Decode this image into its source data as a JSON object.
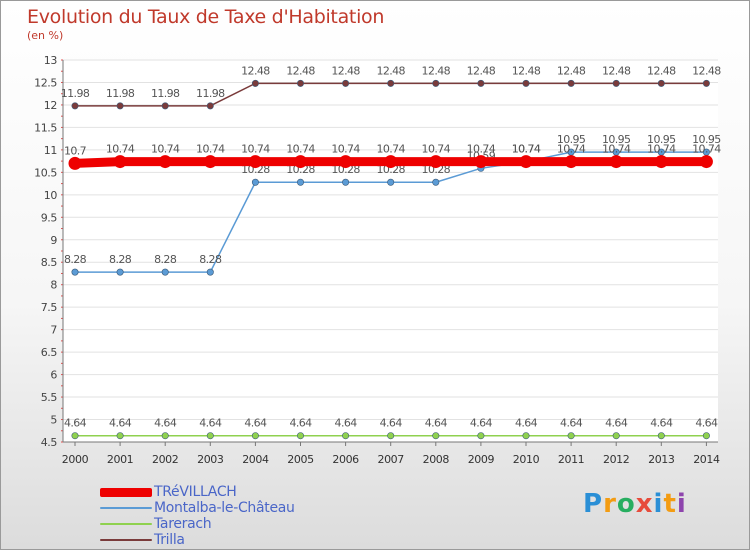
{
  "title": "Evolution du Taux de Taxe d'Habitation",
  "subtitle": "(en %)",
  "logo": [
    "P",
    "r",
    "o",
    "x",
    "i",
    "t",
    "i"
  ],
  "chart_data": {
    "type": "line",
    "title": "Evolution du Taux de Taxe d'Habitation",
    "ylabel": "(en %)",
    "ylim": [
      4.5,
      13
    ],
    "yticks": [
      "4.5",
      "5",
      "5.5",
      "6",
      "6.5",
      "7",
      "7.5",
      "8",
      "8.5",
      "9",
      "9.5",
      "10",
      "10.5",
      "11",
      "11.5",
      "12",
      "12.5",
      "13"
    ],
    "x": [
      "2000",
      "2001",
      "2002",
      "2003",
      "2004",
      "2005",
      "2006",
      "2007",
      "2008",
      "2009",
      "2010",
      "2011",
      "2012",
      "2013",
      "2014"
    ],
    "series": [
      {
        "name": "TRéVILLACH",
        "color": "#ee0000",
        "values": [
          10.7,
          10.74,
          10.74,
          10.74,
          10.74,
          10.74,
          10.74,
          10.74,
          10.74,
          10.74,
          10.74,
          10.74,
          10.74,
          10.74,
          10.74
        ],
        "labels": [
          "10.7",
          "10.74",
          "10.74",
          "10.74",
          "10.74",
          "10.74",
          "10.74",
          "10.74",
          "10.74",
          "10.74",
          "10.74",
          "10.74",
          "10.74",
          "10.74",
          "10.74"
        ]
      },
      {
        "name": "Montalba-le-Château",
        "color": "#5b9bd5",
        "values": [
          8.28,
          8.28,
          8.28,
          8.28,
          10.28,
          10.28,
          10.28,
          10.28,
          10.28,
          10.59,
          10.74,
          10.95,
          10.95,
          10.95,
          10.95
        ],
        "labels": [
          "8.28",
          "8.28",
          "8.28",
          "8.28",
          "10.28",
          "10.28",
          "10.28",
          "10.28",
          "10.28",
          "10.59",
          "10.74",
          "10.95",
          "10.95",
          "10.95",
          "10.95"
        ]
      },
      {
        "name": "Tarerach",
        "color": "#8fd14f",
        "values": [
          4.64,
          4.64,
          4.64,
          4.64,
          4.64,
          4.64,
          4.64,
          4.64,
          4.64,
          4.64,
          4.64,
          4.64,
          4.64,
          4.64,
          4.64
        ],
        "labels": [
          "4.64",
          "4.64",
          "4.64",
          "4.64",
          "4.64",
          "4.64",
          "4.64",
          "4.64",
          "4.64",
          "4.64",
          "4.64",
          "4.64",
          "4.64",
          "4.64",
          "4.64"
        ]
      },
      {
        "name": "Trilla",
        "color": "#7a3b3b",
        "values": [
          11.98,
          11.98,
          11.98,
          11.98,
          12.48,
          12.48,
          12.48,
          12.48,
          12.48,
          12.48,
          12.48,
          12.48,
          12.48,
          12.48,
          12.48
        ],
        "labels": [
          "11.98",
          "11.98",
          "11.98",
          "11.98",
          "12.48",
          "12.48",
          "12.48",
          "12.48",
          "12.48",
          "12.48",
          "12.48",
          "12.48",
          "12.48",
          "12.48",
          "12.48"
        ]
      }
    ]
  }
}
